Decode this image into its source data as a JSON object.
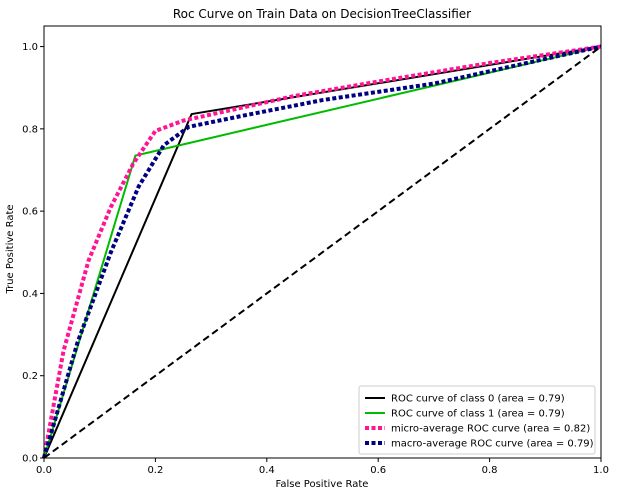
{
  "chart_data": {
    "type": "line",
    "title": "Roc Curve on Train Data on DecisionTreeClassifier",
    "xlabel": "False Positive Rate",
    "ylabel": "True Positive Rate",
    "xlim": [
      0.0,
      1.0
    ],
    "ylim": [
      0.0,
      1.05
    ],
    "xticks": [
      "0.0",
      "0.2",
      "0.4",
      "0.6",
      "0.8",
      "1.0"
    ],
    "yticks": [
      "0.0",
      "0.2",
      "0.4",
      "0.6",
      "0.8",
      "1.0"
    ],
    "grid": false,
    "legend_position": "lower-right",
    "series": [
      {
        "name": "ROC curve of class 0 (area = 0.79)",
        "color": "#000000",
        "style": "solid",
        "x": [
          0.0,
          0.265,
          1.0
        ],
        "y": [
          0.0,
          0.836,
          1.0
        ]
      },
      {
        "name": "ROC curve of class 1 (area = 0.79)",
        "color": "#00bb00",
        "style": "solid",
        "x": [
          0.0,
          0.164,
          1.0
        ],
        "y": [
          0.0,
          0.735,
          1.0
        ]
      },
      {
        "name": "micro-average ROC curve (area = 0.82)",
        "color": "#ff1493",
        "style": "dotted",
        "x": [
          0.0,
          0.035,
          0.08,
          0.12,
          0.16,
          0.2,
          0.25,
          0.35,
          0.45,
          0.6,
          0.8,
          1.0
        ],
        "y": [
          0.0,
          0.26,
          0.48,
          0.61,
          0.715,
          0.795,
          0.82,
          0.85,
          0.88,
          0.915,
          0.96,
          1.0
        ]
      },
      {
        "name": "macro-average ROC curve (area = 0.79)",
        "color": "#000080",
        "style": "dotted",
        "x": [
          0.0,
          0.06,
          0.12,
          0.17,
          0.215,
          0.23,
          0.26,
          0.35,
          0.5,
          0.7,
          0.85,
          1.0
        ],
        "y": [
          0.0,
          0.28,
          0.5,
          0.66,
          0.76,
          0.775,
          0.805,
          0.83,
          0.87,
          0.91,
          0.955,
          1.0
        ]
      },
      {
        "name": "",
        "color": "#000000",
        "style": "dashed",
        "x": [
          0.0,
          1.0
        ],
        "y": [
          0.0,
          1.0
        ]
      }
    ]
  }
}
